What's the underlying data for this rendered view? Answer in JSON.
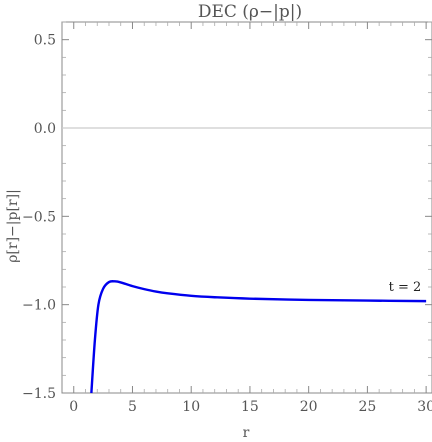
{
  "chart_data": {
    "type": "line",
    "title": "DEC (ρ−|p|)",
    "xlabel": "r",
    "ylabel": "ρ[r]−|p[r]|",
    "xlim": [
      -1,
      30.5
    ],
    "ylim": [
      -1.5,
      0.6
    ],
    "x_ticks": [
      0,
      5,
      10,
      15,
      20,
      25,
      30
    ],
    "y_ticks": [
      0.5,
      0.0,
      -0.5,
      -1.0,
      -1.5
    ],
    "x_tick_labels": [
      "0",
      "5",
      "10",
      "15",
      "20",
      "25",
      "30"
    ],
    "y_tick_labels": [
      "0.5",
      "0.0",
      "−0.5",
      "−1.0",
      "−1.5"
    ],
    "zero_line": true,
    "grid": false,
    "series": [
      {
        "color": "#0000ee",
        "x": [
          1.5,
          1.8,
          2.1,
          2.5,
          3.0,
          3.5,
          4.0,
          5.0,
          6.0,
          7.0,
          8.0,
          10.0,
          12.0,
          15.0,
          20.0,
          25.0,
          30.0
        ],
        "y": [
          -1.5,
          -1.2,
          -1.0,
          -0.91,
          -0.872,
          -0.868,
          -0.874,
          -0.895,
          -0.912,
          -0.926,
          -0.936,
          -0.95,
          -0.958,
          -0.966,
          -0.973,
          -0.977,
          -0.98
        ]
      }
    ],
    "annotations": [
      {
        "text": "t = 2",
        "x": 28.2,
        "y": -0.9
      }
    ]
  }
}
